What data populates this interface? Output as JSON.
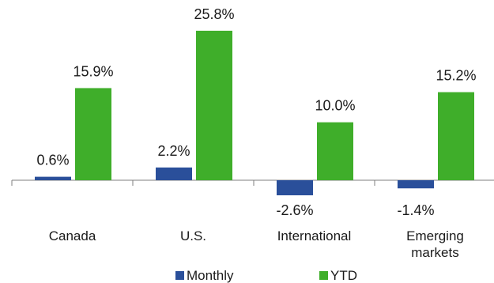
{
  "chart_data": {
    "type": "bar",
    "categories": [
      "Canada",
      "U.S.",
      "International",
      "Emerging markets"
    ],
    "category_lines": [
      [
        "Canada"
      ],
      [
        "U.S."
      ],
      [
        "International"
      ],
      [
        "Emerging",
        "markets"
      ]
    ],
    "series": [
      {
        "name": "Monthly",
        "color": "#2a4f9a",
        "values": [
          0.6,
          2.2,
          -2.6,
          -1.4
        ],
        "labels": [
          "0.6%",
          "2.2%",
          "-2.6%",
          "-1.4%"
        ]
      },
      {
        "name": "YTD",
        "color": "#3fae2a",
        "values": [
          15.9,
          25.8,
          10.0,
          15.2
        ],
        "labels": [
          "15.9%",
          "25.8%",
          "10.0%",
          "15.2%"
        ]
      }
    ],
    "title": "",
    "xlabel": "",
    "ylabel": "",
    "ylim": [
      -4,
      27
    ],
    "grid": false,
    "legend_position": "bottom"
  }
}
